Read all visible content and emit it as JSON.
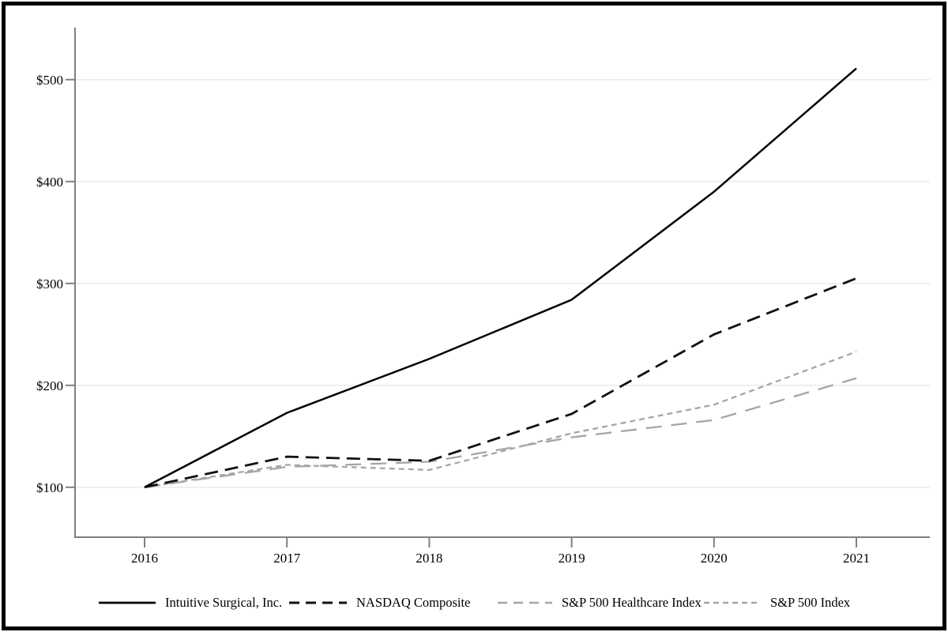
{
  "figure": {
    "background": "#ffffff",
    "border_color": "#000000",
    "axis_color": "#808080",
    "gridline_color": "#e8e8e8"
  },
  "chart_data": {
    "type": "line",
    "title": "",
    "xlabel": "",
    "ylabel": "",
    "x": [
      2016,
      2017,
      2018,
      2019,
      2020,
      2021
    ],
    "x_tick_labels": [
      "2016",
      "2017",
      "2018",
      "2019",
      "2020",
      "2021"
    ],
    "y_ticks": [
      100,
      200,
      300,
      400,
      500
    ],
    "y_tick_labels": [
      "$100",
      "$200",
      "$300",
      "$400",
      "$500"
    ],
    "ylim": [
      51,
      551
    ],
    "grid": "horizontal",
    "legend_position": "bottom",
    "series": [
      {
        "name": "Intuitive Surgical, Inc.",
        "values": [
          100,
          173,
          226,
          284,
          390,
          511
        ],
        "color": "#000000",
        "dash": "solid",
        "width": 2.5,
        "legend_dash": "solid"
      },
      {
        "name": "NASDAQ Composite",
        "values": [
          100,
          130,
          126,
          172,
          250,
          305
        ],
        "color": "#111111",
        "dash": "17 9",
        "width": 2.8,
        "legend_dash": "13 8"
      },
      {
        "name": "S&P 500 Healthcare Index",
        "values": [
          100,
          120,
          125,
          149,
          166,
          207
        ],
        "color": "#a6a6a6",
        "dash": "20 12",
        "width": 2.3,
        "legend_dash": "12 8"
      },
      {
        "name": "S&P 500 Index",
        "values": [
          100,
          122,
          117,
          153,
          181,
          233
        ],
        "color": "#a6a6a6",
        "dash": "7 5",
        "width": 2.3,
        "legend_dash": "7 5"
      }
    ]
  }
}
